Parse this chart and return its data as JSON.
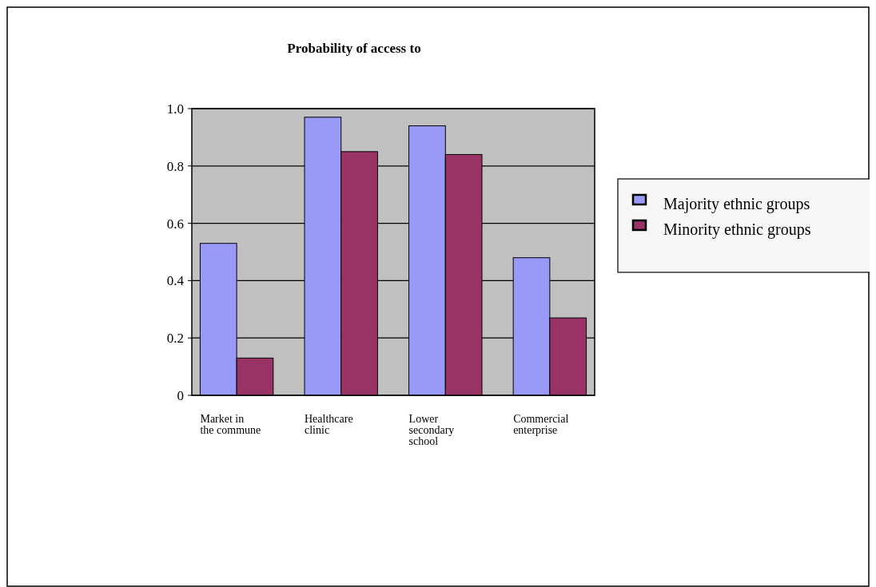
{
  "chart_data": {
    "type": "bar",
    "title": "Probability of access to",
    "categories": [
      "Market in the commune",
      "Healthcare clinic",
      "Lower secondary school",
      "Commercial enterprise"
    ],
    "series": [
      {
        "name": "Majority ethnic groups",
        "color": "#9999f8",
        "values": [
          0.53,
          0.97,
          0.94,
          0.48
        ]
      },
      {
        "name": "Minority ethnic groups",
        "color": "#993366",
        "values": [
          0.13,
          0.85,
          0.84,
          0.27
        ]
      }
    ],
    "ylim": [
      0,
      1
    ],
    "yticks": [
      {
        "value": 0,
        "label": "0"
      },
      {
        "value": 0.2,
        "label": "0.2"
      },
      {
        "value": 0.4,
        "label": "0.4"
      },
      {
        "value": 0.6,
        "label": "0.6"
      },
      {
        "value": 0.8,
        "label": "0.8"
      },
      {
        "value": 1,
        "label": "1.0"
      }
    ],
    "grid": "y",
    "legend": "right"
  }
}
